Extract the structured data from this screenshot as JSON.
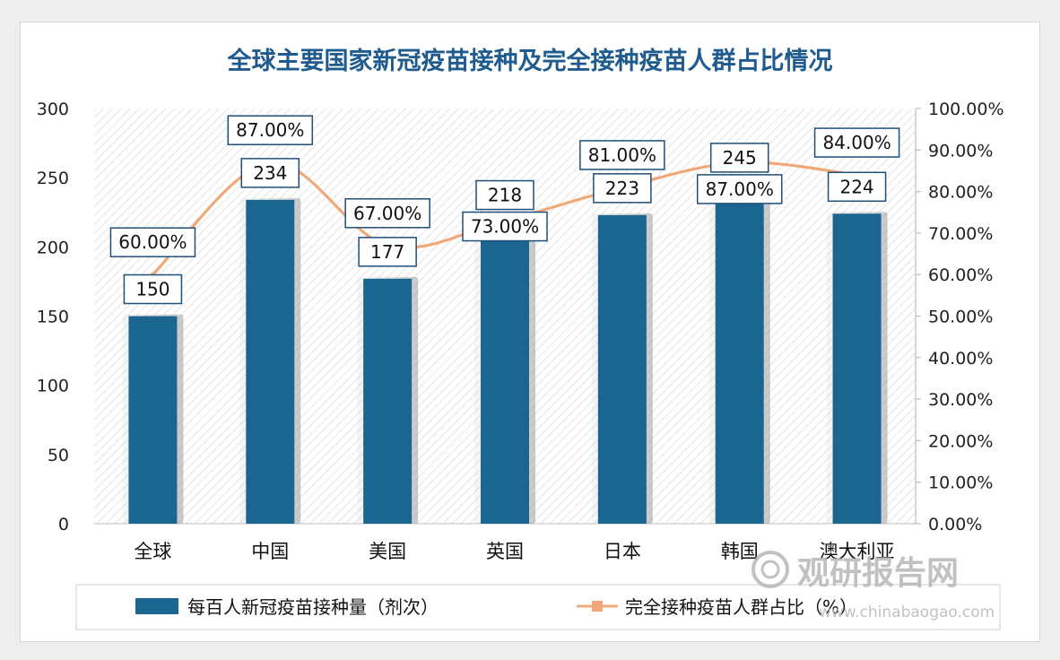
{
  "chart_data": {
    "type": "bar",
    "title": "全球主要国家新冠疫苗接种及完全接种疫苗人群占比情况",
    "categories": [
      "全球",
      "中国",
      "美国",
      "英国",
      "日本",
      "韩国",
      "澳大利亚"
    ],
    "series": [
      {
        "name": "每百人新冠疫苗接种量（剂次）",
        "type": "bar",
        "axis": "left",
        "values": [
          150,
          234,
          177,
          218,
          223,
          245,
          224
        ],
        "labels": [
          "150",
          "234",
          "177",
          "218",
          "223",
          "245",
          "224"
        ],
        "color": "#1a6691"
      },
      {
        "name": "完全接种疫苗人群占比（%）",
        "type": "line",
        "axis": "right",
        "values": [
          60,
          87,
          67,
          73,
          81,
          87,
          84
        ],
        "labels": [
          "60.00%",
          "87.00%",
          "67.00%",
          "73.00%",
          "81.00%",
          "87.00%",
          "84.00%"
        ],
        "color": "#f0a878"
      }
    ],
    "ylim_left": [
      0,
      300
    ],
    "yticks_left": [
      "0",
      "50",
      "100",
      "150",
      "200",
      "250",
      "300"
    ],
    "ylim_right": [
      0,
      100
    ],
    "yticks_right": [
      "0.00%",
      "10.00%",
      "20.00%",
      "30.00%",
      "40.00%",
      "50.00%",
      "60.00%",
      "70.00%",
      "80.00%",
      "90.00%",
      "100.00%"
    ],
    "legend_position": "bottom",
    "grid": false,
    "plot_background": "hatched"
  },
  "watermark": {
    "text": "观研报告网",
    "url": "www.chinabaogao.com"
  }
}
